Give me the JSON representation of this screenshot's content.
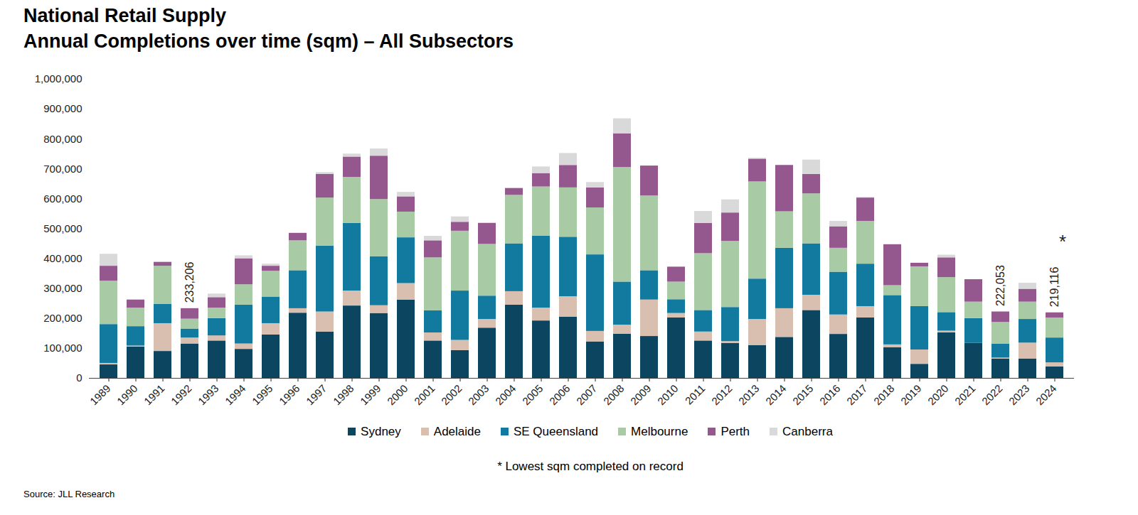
{
  "chart_data": {
    "type": "bar",
    "stacked": true,
    "title": "National Retail Supply",
    "subtitle": "Annual Completions over time (sqm) – All Subsectors",
    "categories": [
      "1989",
      "1990",
      "1991",
      "1992",
      "1993",
      "1994",
      "1995",
      "1996",
      "1997",
      "1998",
      "1999",
      "2000",
      "2001",
      "2002",
      "2003",
      "2004",
      "2005",
      "2006",
      "2007",
      "2008",
      "2009",
      "2010",
      "2011",
      "2012",
      "2013",
      "2014",
      "2015",
      "2016",
      "2017",
      "2018",
      "2019",
      "2020",
      "2021",
      "2022",
      "2023",
      "2024"
    ],
    "series": [
      {
        "name": "Sydney",
        "color": "#0b4560",
        "values": [
          45000,
          105000,
          90000,
          115000,
          125000,
          97000,
          145000,
          218000,
          155000,
          242000,
          217000,
          262000,
          125000,
          93000,
          168000,
          245000,
          192000,
          205000,
          122000,
          148000,
          140000,
          202000,
          125000,
          117000,
          110000,
          137000,
          227000,
          147000,
          202000,
          103000,
          47000,
          152000,
          117000,
          65000,
          65000,
          38000
        ]
      },
      {
        "name": "Adelaide",
        "color": "#d8bfb0",
        "values": [
          5000,
          3000,
          93000,
          20000,
          17000,
          18000,
          38000,
          15000,
          67000,
          50000,
          26000,
          55000,
          27000,
          34000,
          29000,
          45000,
          43000,
          68000,
          35000,
          30000,
          122000,
          15000,
          30000,
          6000,
          87000,
          96000,
          51000,
          65000,
          38000,
          9000,
          48000,
          6000,
          0,
          3000,
          53000,
          14000
        ]
      },
      {
        "name": "SE Queensland",
        "color": "#127a9e",
        "values": [
          130000,
          65000,
          65000,
          30000,
          58000,
          130000,
          89000,
          127000,
          220000,
          226000,
          164000,
          153000,
          74000,
          165000,
          78000,
          160000,
          241000,
          199000,
          256000,
          144000,
          98000,
          46000,
          72000,
          114000,
          135000,
          202000,
          172000,
          143000,
          142000,
          165000,
          145000,
          62000,
          83000,
          47000,
          79000,
          83000
        ]
      },
      {
        "name": "Melbourne",
        "color": "#a8cba6",
        "values": [
          145000,
          62000,
          127000,
          33000,
          35000,
          68000,
          86000,
          100000,
          161000,
          154000,
          191000,
          86000,
          177000,
          200000,
          173000,
          162000,
          164000,
          165000,
          157000,
          383000,
          250000,
          59000,
          190000,
          221000,
          325000,
          122000,
          167000,
          80000,
          143000,
          33000,
          133000,
          117000,
          55000,
          72000,
          58000,
          67000
        ]
      },
      {
        "name": "Perth",
        "color": "#94588e",
        "values": [
          50000,
          27000,
          13000,
          35206,
          35000,
          87000,
          17000,
          25000,
          79000,
          68000,
          145000,
          51000,
          57000,
          30000,
          70000,
          23000,
          45000,
          75000,
          67000,
          113000,
          100000,
          50000,
          101000,
          95000,
          76000,
          155000,
          65000,
          72000,
          78000,
          137000,
          12000,
          66000,
          75000,
          35053,
          43000,
          17116
        ]
      },
      {
        "name": "Canberra",
        "color": "#d9d9d9",
        "values": [
          40000,
          0,
          0,
          0,
          12000,
          10000,
          7000,
          0,
          6000,
          10000,
          24000,
          15000,
          15000,
          18000,
          2000,
          0,
          22000,
          40000,
          18000,
          50000,
          0,
          0,
          40000,
          44000,
          3000,
          0,
          48000,
          18000,
          2000,
          0,
          0,
          9000,
          0,
          0,
          20000,
          0
        ]
      }
    ],
    "ylim": [
      0,
      1000000
    ],
    "yticks": [
      0,
      {
        "value": 100000,
        "label": "100,000"
      },
      {
        "value": 200000,
        "label": "200,000"
      },
      {
        "value": 300000,
        "label": "300,000"
      },
      {
        "value": 400000,
        "label": "400,000"
      },
      {
        "value": 500000,
        "label": "500,000"
      },
      {
        "value": 600000,
        "label": "600,000"
      },
      {
        "value": 700000,
        "label": "700,000"
      },
      {
        "value": 800000,
        "label": "800,000"
      },
      {
        "value": 900000,
        "label": "900,000"
      },
      {
        "value": 1000000,
        "label": "1,000,000"
      }
    ],
    "grid": false,
    "legend": "bottom",
    "total_labels": [
      {
        "x": "1992",
        "label": "233,206"
      },
      {
        "x": "2022",
        "label": "222,053"
      },
      {
        "x": "2024",
        "label": "219,116"
      }
    ],
    "markers": [
      {
        "x": "2024",
        "text": "*"
      }
    ],
    "footnote": "* Lowest sqm completed on record",
    "source": "Source: JLL Research"
  }
}
